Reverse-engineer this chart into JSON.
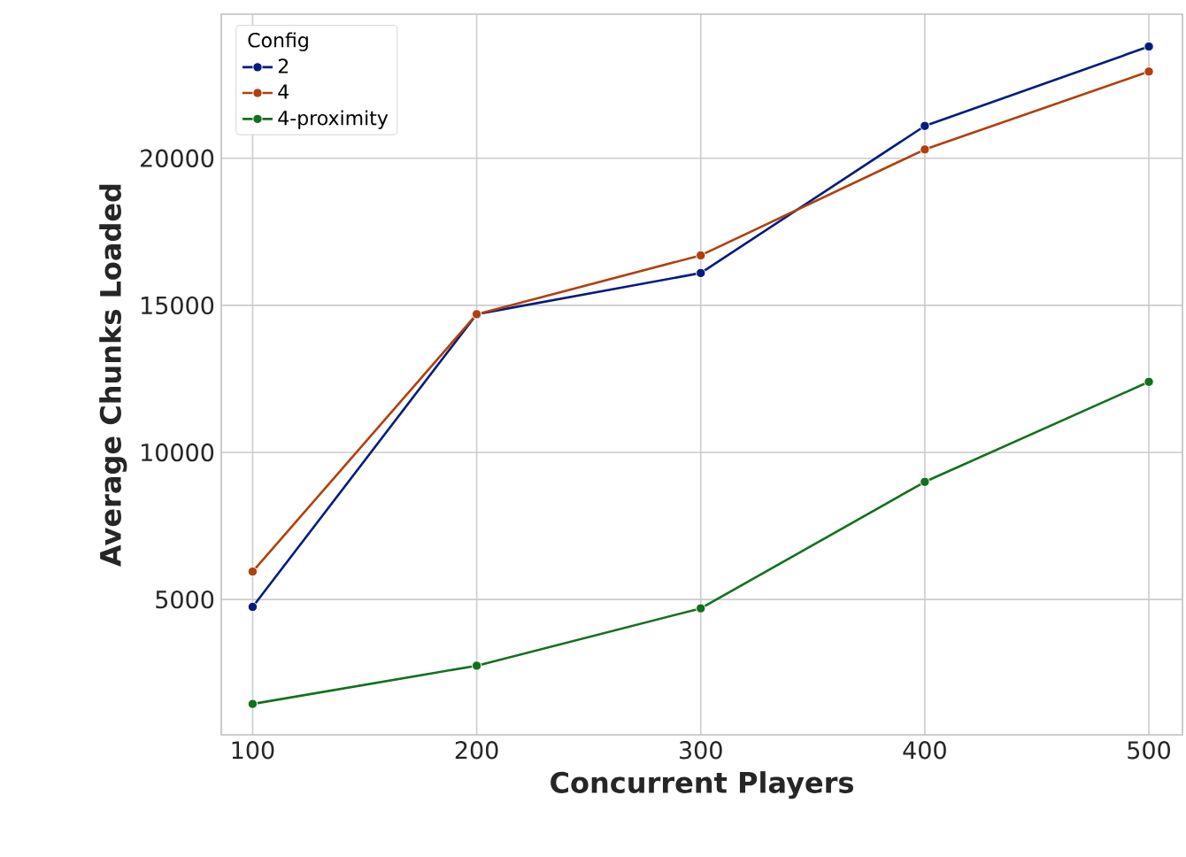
{
  "chart_data": {
    "type": "line",
    "xlabel": "Concurrent Players",
    "ylabel": "Average Chunks Loaded",
    "legend_title": "Config",
    "x": [
      100,
      200,
      300,
      400,
      500
    ],
    "series": [
      {
        "name": "2",
        "color": "#001c7f",
        "values": [
          4750,
          14700,
          16100,
          21100,
          23800
        ]
      },
      {
        "name": "4",
        "color": "#b1400d",
        "values": [
          5950,
          14700,
          16700,
          20300,
          22950
        ]
      },
      {
        "name": "4-proximity",
        "color": "#12711c",
        "values": [
          1450,
          2750,
          4700,
          9000,
          12400
        ]
      }
    ],
    "xlim": [
      86,
      515
    ],
    "ylim": [
      400,
      24900
    ],
    "xticks": [
      100,
      200,
      300,
      400,
      500
    ],
    "yticks": [
      5000,
      10000,
      15000,
      20000
    ],
    "grid": true,
    "legend": "top left",
    "marker": "circle",
    "line_style": "solid"
  }
}
